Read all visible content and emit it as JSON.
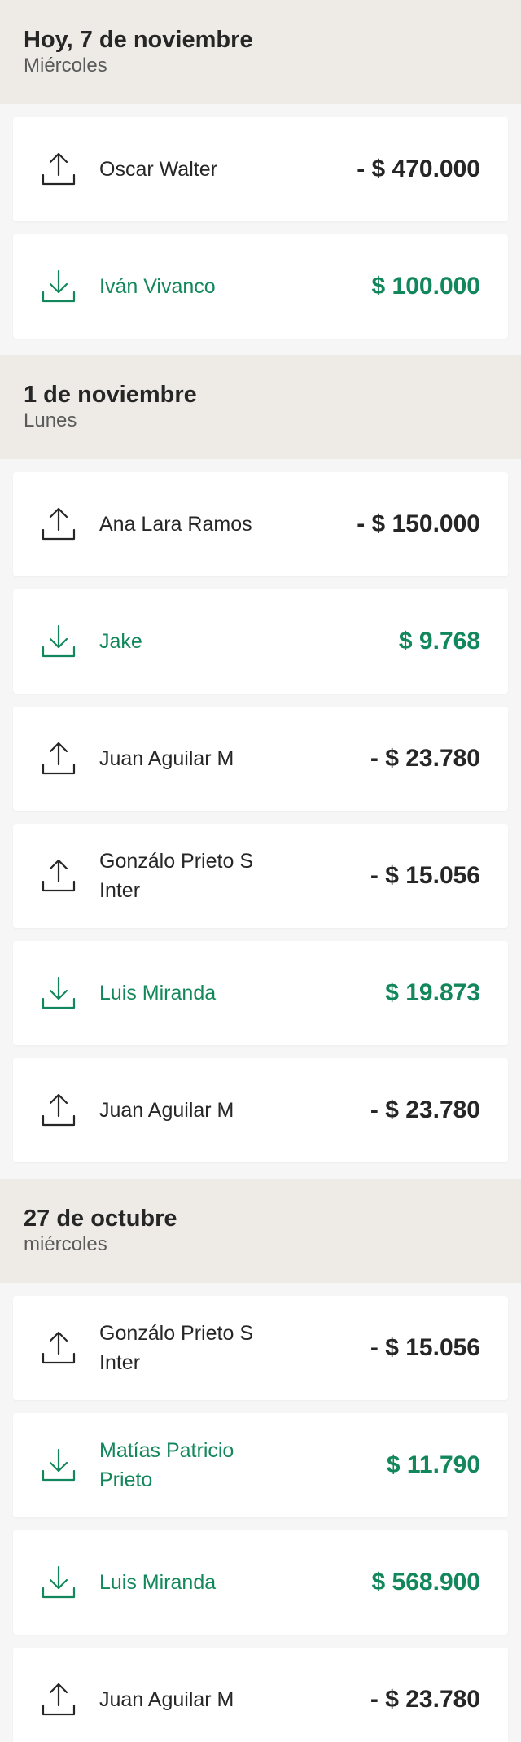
{
  "colors": {
    "incoming": "#13875c",
    "outgoing": "#262626",
    "header_bg": "#eeebe7",
    "card_bg": "#ffffff"
  },
  "sections": [
    {
      "title": "Hoy, 7 de noviembre",
      "subtitle": "Miércoles",
      "items": [
        {
          "direction": "out",
          "icon": "upload-icon",
          "name": "Oscar Walter",
          "amount": "- $ 470.000"
        },
        {
          "direction": "in",
          "icon": "download-icon",
          "name": "Iván Vivanco",
          "amount": "$ 100.000"
        }
      ]
    },
    {
      "title": "1 de noviembre",
      "subtitle": "Lunes",
      "items": [
        {
          "direction": "out",
          "icon": "upload-icon",
          "name": "Ana Lara Ramos",
          "amount": "- $ 150.000"
        },
        {
          "direction": "in",
          "icon": "download-icon",
          "name": "Jake",
          "amount": "$ 9.768"
        },
        {
          "direction": "out",
          "icon": "upload-icon",
          "name": "Juan Aguilar M",
          "amount": "- $ 23.780"
        },
        {
          "direction": "out",
          "icon": "upload-icon",
          "name": "Gonzálo Prieto S Inter",
          "amount": "- $ 15.056"
        },
        {
          "direction": "in",
          "icon": "download-icon",
          "name": "Luis Miranda",
          "amount": "$ 19.873"
        },
        {
          "direction": "out",
          "icon": "upload-icon",
          "name": "Juan Aguilar M",
          "amount": "- $ 23.780"
        }
      ]
    },
    {
      "title": "27 de octubre",
      "subtitle": "miércoles",
      "items": [
        {
          "direction": "out",
          "icon": "upload-icon",
          "name": "Gonzálo Prieto S Inter",
          "amount": "- $ 15.056"
        },
        {
          "direction": "in",
          "icon": "download-icon",
          "name": "Matías Patricio Prieto",
          "amount": "$ 11.790"
        },
        {
          "direction": "in",
          "icon": "download-icon",
          "name": "Luis Miranda",
          "amount": "$ 568.900"
        },
        {
          "direction": "out",
          "icon": "upload-icon",
          "name": "Juan Aguilar M",
          "amount": "- $ 23.780"
        }
      ]
    }
  ]
}
